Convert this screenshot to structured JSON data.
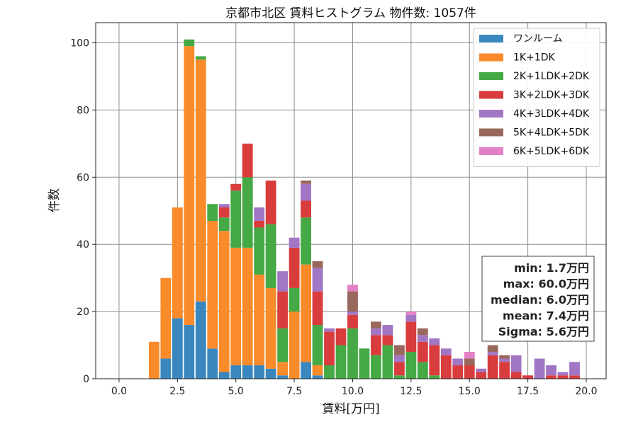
{
  "chart_data": {
    "type": "bar",
    "stacked": true,
    "title": "京都市北区 賃料ヒストグラム  物件数: 1057件",
    "xlabel": "賃料[万円]",
    "ylabel": "件数",
    "xlim": [
      -1.0,
      20.85
    ],
    "ylim": [
      0,
      106
    ],
    "xticks": [
      "0.0",
      "2.5",
      "5.0",
      "7.5",
      "10.0",
      "12.5",
      "15.0",
      "17.5",
      "20.0"
    ],
    "xtick_values": [
      0,
      2.5,
      5,
      7.5,
      10,
      12.5,
      15,
      17.5,
      20
    ],
    "yticks": [
      "0",
      "20",
      "40",
      "60",
      "80",
      "100"
    ],
    "ytick_values": [
      0,
      20,
      40,
      60,
      80,
      100
    ],
    "grid": true,
    "legend_position": "top-right",
    "bin_width": 0.5,
    "x": [
      1.5,
      2.0,
      2.5,
      3.0,
      3.5,
      4.0,
      4.5,
      5.0,
      5.5,
      6.0,
      6.5,
      7.0,
      7.5,
      8.0,
      8.5,
      9.0,
      9.5,
      10.0,
      10.5,
      11.0,
      11.5,
      12.0,
      12.5,
      13.0,
      13.5,
      14.0,
      14.5,
      15.0,
      15.5,
      16.0,
      16.5,
      17.0,
      17.5,
      18.0,
      18.5,
      19.0,
      19.5
    ],
    "series": [
      {
        "name": "ワンルーム",
        "color": "#3a87bf",
        "values": [
          0,
          6,
          18,
          16,
          23,
          9,
          2,
          4,
          4,
          4,
          3,
          1,
          0,
          5,
          1,
          0,
          0,
          0,
          0,
          0,
          0,
          0,
          0,
          0,
          0,
          0,
          0,
          0,
          0,
          0,
          0,
          0,
          0,
          0,
          0,
          0,
          0
        ]
      },
      {
        "name": "1K+1DK",
        "color": "#f98b2a",
        "values": [
          11,
          24,
          33,
          83,
          72,
          38,
          42,
          35,
          35,
          27,
          24,
          4,
          20,
          29,
          3,
          0,
          0,
          0,
          0,
          0,
          0,
          0,
          0,
          0,
          0,
          0,
          0,
          0,
          0,
          0,
          0,
          0,
          0,
          0,
          0,
          0,
          0
        ]
      },
      {
        "name": "2K+1LDK+2DK",
        "color": "#45a945",
        "values": [
          0,
          0,
          0,
          2,
          1,
          5,
          4,
          17,
          21,
          14,
          19,
          10,
          7,
          14,
          12,
          4,
          10,
          15,
          9,
          7,
          10,
          1,
          8,
          5,
          1,
          0,
          0,
          0,
          0,
          0,
          0,
          0,
          0,
          0,
          0,
          0,
          0
        ]
      },
      {
        "name": "3K+2LDK+3DK",
        "color": "#d93c3c",
        "values": [
          0,
          0,
          0,
          0,
          0,
          0,
          3,
          2,
          10,
          2,
          13,
          11,
          12,
          5,
          10,
          10,
          5,
          4,
          0,
          6,
          3,
          4,
          9,
          6,
          9,
          7,
          4,
          4,
          2,
          7,
          5,
          2,
          1,
          0,
          1,
          1,
          1
        ]
      },
      {
        "name": "4K+3LDK+4DK",
        "color": "#a176c4",
        "values": [
          0,
          0,
          0,
          0,
          0,
          0,
          1,
          0,
          0,
          4,
          0,
          6,
          3,
          5,
          7,
          1,
          0,
          1,
          0,
          2,
          3,
          2,
          2,
          2,
          2,
          2,
          2,
          0,
          1,
          1,
          1,
          5,
          0,
          6,
          3,
          1,
          4
        ]
      },
      {
        "name": "5K+4LDK+5DK",
        "color": "#9a675c",
        "values": [
          0,
          0,
          0,
          0,
          0,
          0,
          0,
          0,
          0,
          0,
          0,
          0,
          0,
          1,
          2,
          0,
          0,
          6,
          0,
          2,
          0,
          3,
          0,
          2,
          0,
          0,
          0,
          2,
          0,
          2,
          1,
          0,
          0,
          0,
          0,
          0,
          0
        ]
      },
      {
        "name": "6K+5LDK+6DK",
        "color": "#e481c6",
        "values": [
          0,
          0,
          0,
          0,
          0,
          0,
          0,
          0,
          0,
          0,
          0,
          0,
          0,
          0,
          0,
          0,
          0,
          2,
          0,
          0,
          0,
          0,
          1,
          0,
          0,
          0,
          0,
          2,
          0,
          0,
          0,
          0,
          0,
          0,
          0,
          0,
          0
        ]
      }
    ],
    "stats": [
      "min: 1.7万円",
      "max: 60.0万円",
      "median: 6.0万円",
      "mean: 7.4万円",
      "Sigma: 5.6万円"
    ]
  }
}
